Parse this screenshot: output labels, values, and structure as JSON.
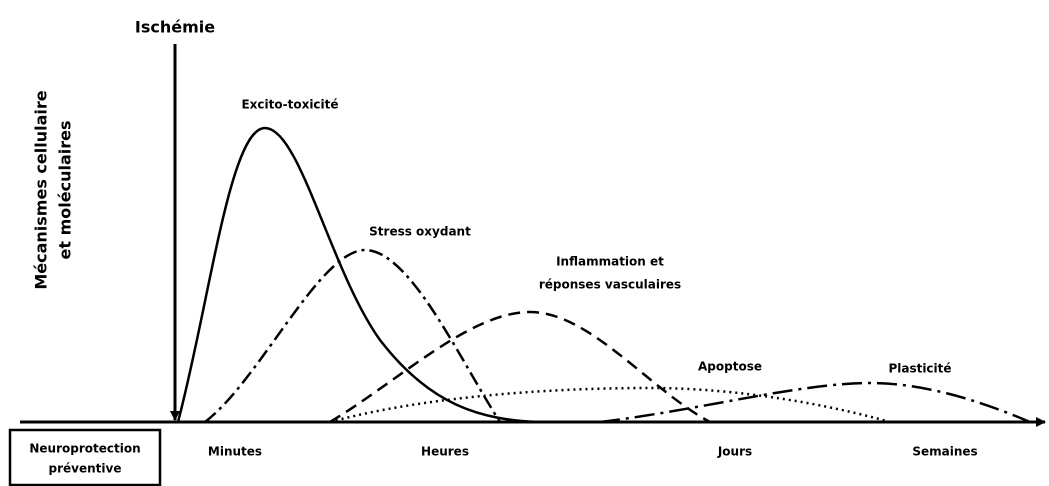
{
  "title": "Ischémie",
  "y_axis_label": [
    "Mécanismes cellulaire",
    "et moléculaires"
  ],
  "curves": [
    {
      "label": [
        "Excito-toxicité"
      ]
    },
    {
      "label": [
        "Stress oxydant"
      ]
    },
    {
      "label": [
        "Inflammation et",
        "réponses vasculaires"
      ]
    },
    {
      "label": [
        "Apoptose"
      ]
    },
    {
      "label": [
        "Plasticité"
      ]
    }
  ],
  "time_labels": [
    "Minutes",
    "Heures",
    "Jours",
    "Semaines"
  ],
  "box": [
    "Neuroprotection",
    "préventive"
  ]
}
